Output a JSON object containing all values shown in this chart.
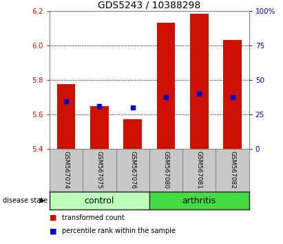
{
  "title": "GDS5243 / 10388298",
  "samples": [
    "GSM567074",
    "GSM567075",
    "GSM567076",
    "GSM567080",
    "GSM567081",
    "GSM567082"
  ],
  "red_tops": [
    5.775,
    5.648,
    5.572,
    6.13,
    6.185,
    6.03
  ],
  "blue_vals": [
    5.675,
    5.648,
    5.638,
    5.7,
    5.72,
    5.7
  ],
  "ymin": 5.4,
  "ymax": 6.2,
  "yticks_left": [
    5.4,
    5.6,
    5.8,
    6.0,
    6.2
  ],
  "yticks_right": [
    0,
    25,
    50,
    75,
    100
  ],
  "groups": [
    {
      "label": "control",
      "indices": [
        0,
        1,
        2
      ],
      "color": "#bbffbb"
    },
    {
      "label": "arthritis",
      "indices": [
        3,
        4,
        5
      ],
      "color": "#44dd44"
    }
  ],
  "bar_color": "#cc1100",
  "blue_color": "#0000cc",
  "bar_width": 0.55,
  "bg_color": "#c8c8c8",
  "plot_bg": "#ffffff",
  "title_fontsize": 10,
  "tick_fontsize": 7.5,
  "sample_fontsize": 6.5,
  "group_label_fontsize": 9,
  "disease_state_label": "disease state",
  "legend_items": [
    {
      "label": "transformed count",
      "color": "#cc1100"
    },
    {
      "label": "percentile rank within the sample",
      "color": "#0000cc"
    }
  ]
}
